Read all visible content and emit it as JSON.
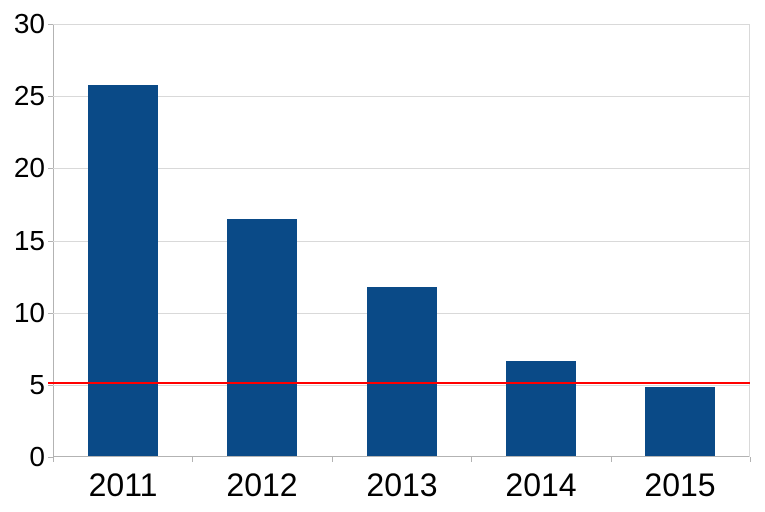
{
  "figure": {
    "background_color": "#ffffff"
  },
  "chart_data": {
    "type": "bar",
    "title": "",
    "xlabel": "",
    "ylabel": "",
    "categories": [
      "2011",
      "2012",
      "2013",
      "2014",
      "2015"
    ],
    "values": [
      25.7,
      16.4,
      11.7,
      6.6,
      4.8
    ],
    "ylim": [
      0,
      30
    ],
    "yticks": [
      0,
      5,
      10,
      15,
      20,
      25,
      30
    ],
    "ytick_labels": [
      "0",
      "5",
      "10",
      "15",
      "20",
      "25",
      "30"
    ],
    "grid": "horizontal",
    "legend": "none",
    "bar_color": "#0a4a87",
    "bar_width_fraction": 0.5,
    "reference_line": {
      "value": 5.1,
      "color": "#ff0000"
    },
    "gridline_color": "#d9d9d9",
    "axis_color": "#b3b3b3",
    "label_color": "#000000"
  }
}
